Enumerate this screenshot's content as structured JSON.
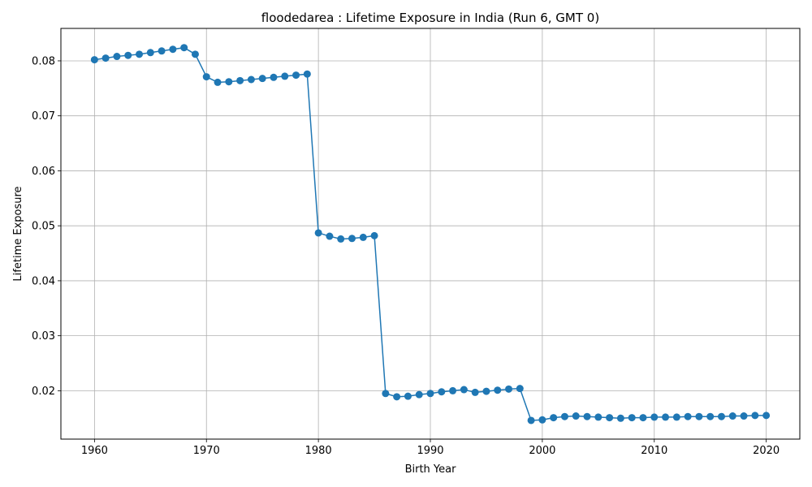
{
  "chart_data": {
    "type": "line",
    "title": "floodedarea : Lifetime Exposure in India (Run 6, GMT 0)",
    "xlabel": "Birth Year",
    "ylabel": "Lifetime Exposure",
    "xlim": [
      1957,
      2023
    ],
    "ylim": [
      0.0112,
      0.0859
    ],
    "xticks": [
      1960,
      1970,
      1980,
      1990,
      2000,
      2010,
      2020
    ],
    "xtick_labels": [
      "1960",
      "1970",
      "1980",
      "1990",
      "2000",
      "2010",
      "2020"
    ],
    "yticks": [
      0.02,
      0.03,
      0.04,
      0.05,
      0.06,
      0.07,
      0.08
    ],
    "ytick_labels": [
      "0.02",
      "0.03",
      "0.04",
      "0.05",
      "0.06",
      "0.07",
      "0.08"
    ],
    "grid": true,
    "color": "#1f77b4",
    "marker": "circle",
    "series": [
      {
        "x": [
          1960,
          1961,
          1962,
          1963,
          1964,
          1965,
          1966,
          1967,
          1968,
          1969,
          1970,
          1971,
          1972,
          1973,
          1974,
          1975,
          1976,
          1977,
          1978,
          1979,
          1980,
          1981,
          1982,
          1983,
          1984,
          1985,
          1986,
          1987,
          1988,
          1989,
          1990,
          1991,
          1992,
          1993,
          1994,
          1995,
          1996,
          1997,
          1998,
          1999,
          2000,
          2001,
          2002,
          2003,
          2004,
          2005,
          2006,
          2007,
          2008,
          2009,
          2010,
          2011,
          2012,
          2013,
          2014,
          2015,
          2016,
          2017,
          2018,
          2019,
          2020
        ],
        "y": [
          0.0802,
          0.0805,
          0.0808,
          0.081,
          0.0812,
          0.0815,
          0.0818,
          0.0821,
          0.0824,
          0.0812,
          0.0771,
          0.0761,
          0.0762,
          0.0764,
          0.0766,
          0.0768,
          0.077,
          0.0772,
          0.0774,
          0.0776,
          0.0487,
          0.0481,
          0.0476,
          0.0477,
          0.0479,
          0.0482,
          0.0195,
          0.0189,
          0.019,
          0.0193,
          0.0195,
          0.0198,
          0.02,
          0.0202,
          0.0197,
          0.0199,
          0.0201,
          0.0203,
          0.0204,
          0.0146,
          0.0147,
          0.0151,
          0.0153,
          0.0154,
          0.0153,
          0.0152,
          0.0151,
          0.015,
          0.0151,
          0.0151,
          0.0152,
          0.0152,
          0.0152,
          0.0153,
          0.0153,
          0.0153,
          0.0153,
          0.0154,
          0.0154,
          0.0155,
          0.0155
        ]
      }
    ]
  }
}
